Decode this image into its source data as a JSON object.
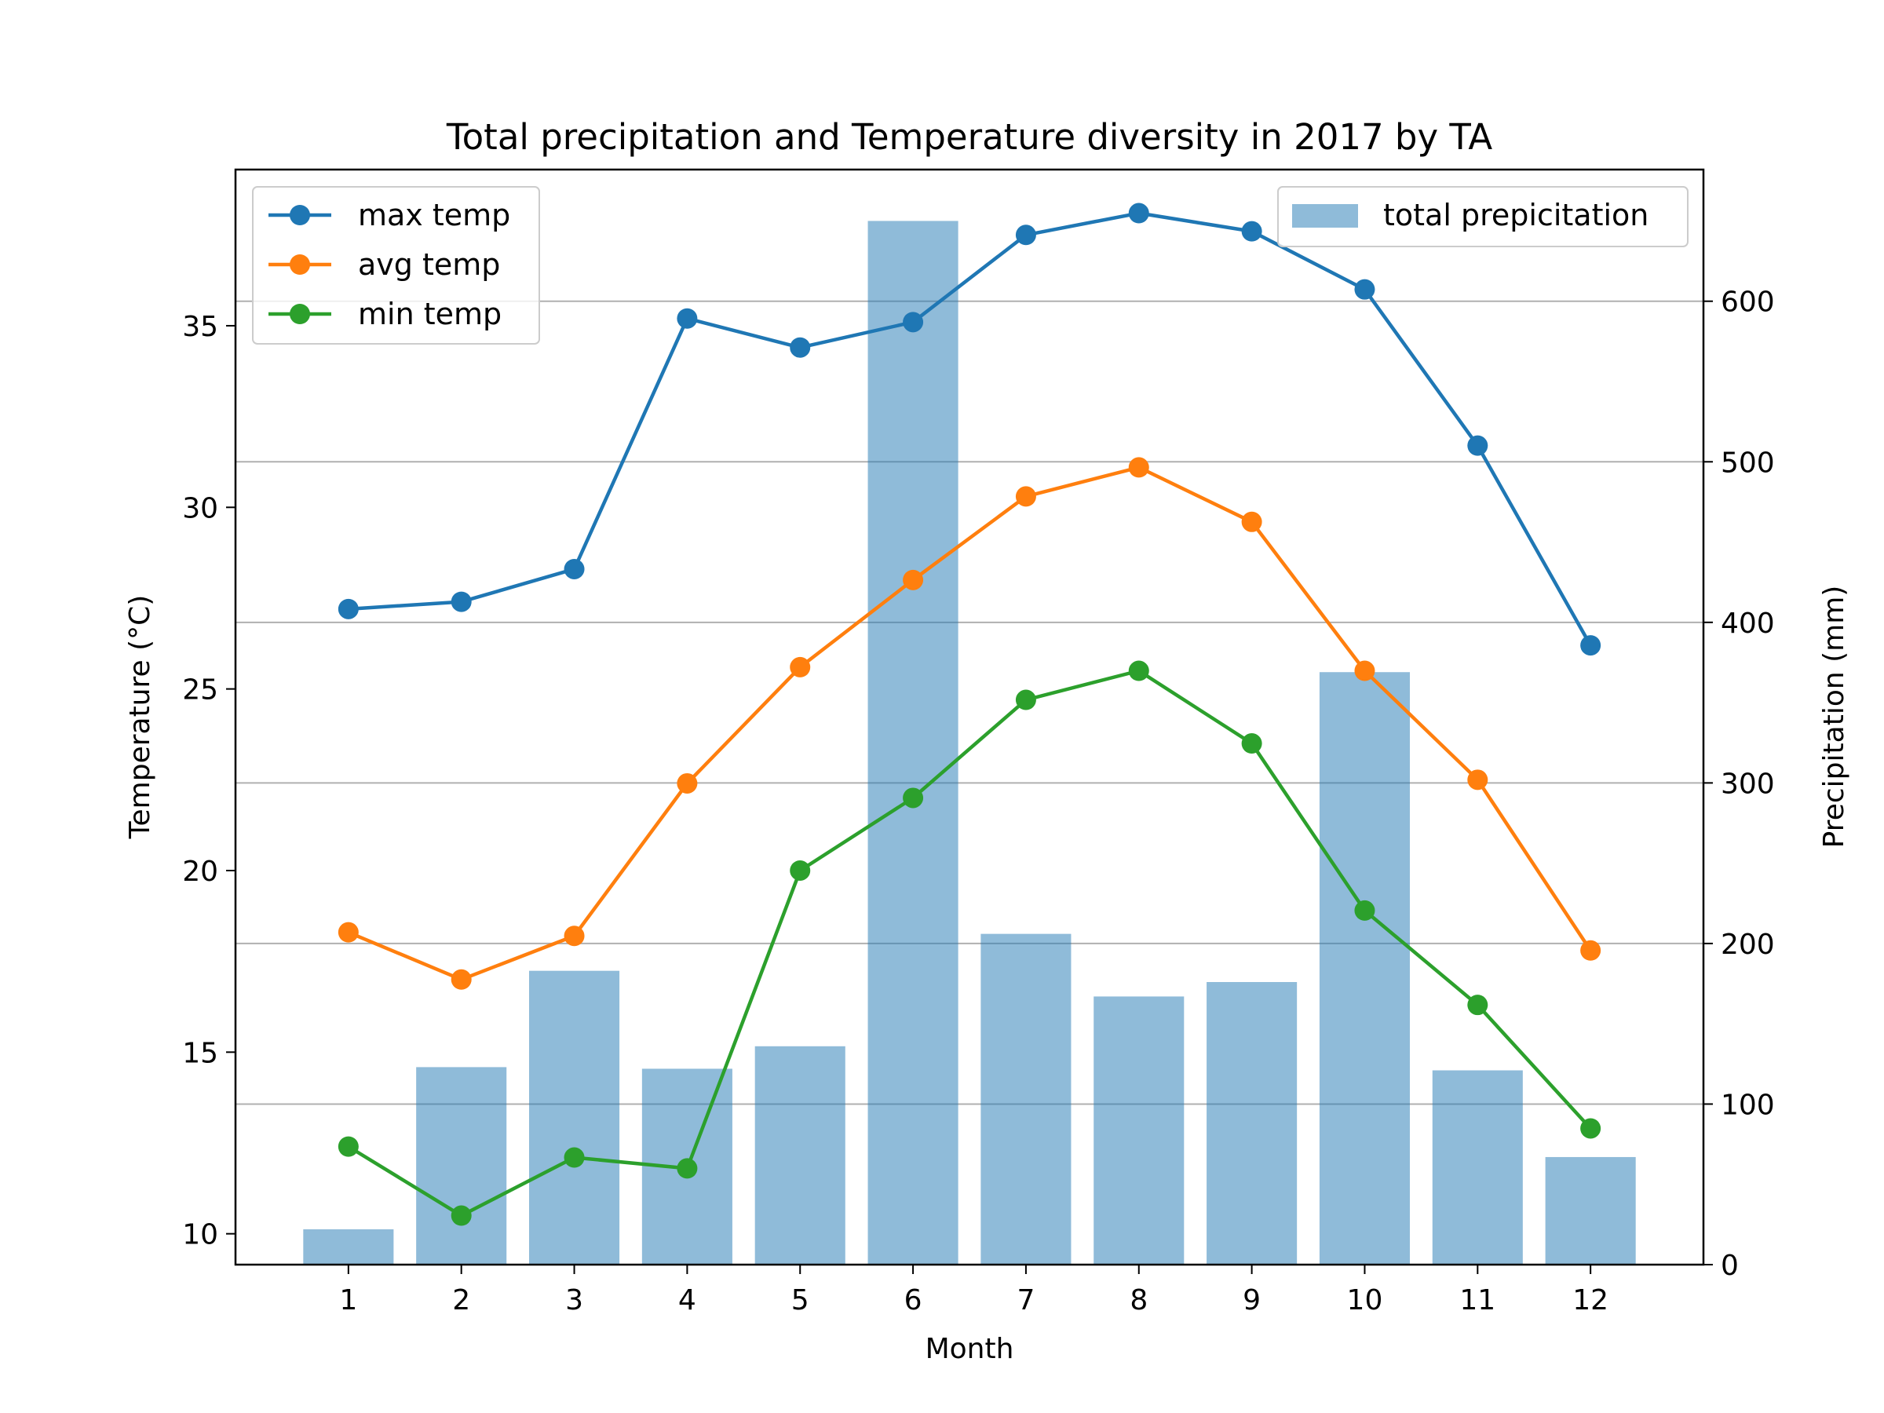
{
  "chart_data": {
    "type": "bar+line",
    "title": "Total precipitation and Temperature diversity in 2017 by TA",
    "xlabel": "Month",
    "ylabel_left": "Temperature (°C)",
    "ylabel_right": "Precipitation (mm)",
    "x": [
      1,
      2,
      3,
      4,
      5,
      6,
      7,
      8,
      9,
      10,
      11,
      12
    ],
    "x_ticks": [
      "1",
      "2",
      "3",
      "4",
      "5",
      "6",
      "7",
      "8",
      "9",
      "10",
      "11",
      "12"
    ],
    "ylim_left": [
      9.15,
      39.3
    ],
    "yticks_left": [
      "10",
      "15",
      "20",
      "25",
      "30",
      "35"
    ],
    "ylim_right": [
      0,
      682
    ],
    "yticks_right": [
      "0",
      "100",
      "200",
      "300",
      "400",
      "500",
      "600"
    ],
    "grid": "right-axis horizontal",
    "bars": {
      "name": "total prepicitation",
      "color": "#1f77b4",
      "values": [
        22,
        123,
        183,
        122,
        136,
        650,
        206,
        167,
        176,
        369,
        121,
        67
      ]
    },
    "series": [
      {
        "name": "max temp",
        "color": "#1f77b4",
        "values": [
          27.2,
          27.4,
          28.3,
          35.2,
          34.4,
          35.1,
          37.5,
          38.1,
          37.6,
          36.0,
          31.7,
          26.2
        ]
      },
      {
        "name": "avg temp",
        "color": "#ff7f0e",
        "values": [
          18.3,
          17.0,
          18.2,
          22.4,
          25.6,
          28.0,
          30.3,
          31.1,
          29.6,
          25.5,
          22.5,
          17.8
        ]
      },
      {
        "name": "min temp",
        "color": "#2ca02c",
        "values": [
          12.4,
          10.5,
          12.1,
          11.8,
          20.0,
          22.0,
          24.7,
          25.5,
          23.5,
          18.9,
          16.3,
          12.9
        ]
      }
    ],
    "legend_left_placement": "top-left",
    "legend_right_placement": "top-right"
  }
}
